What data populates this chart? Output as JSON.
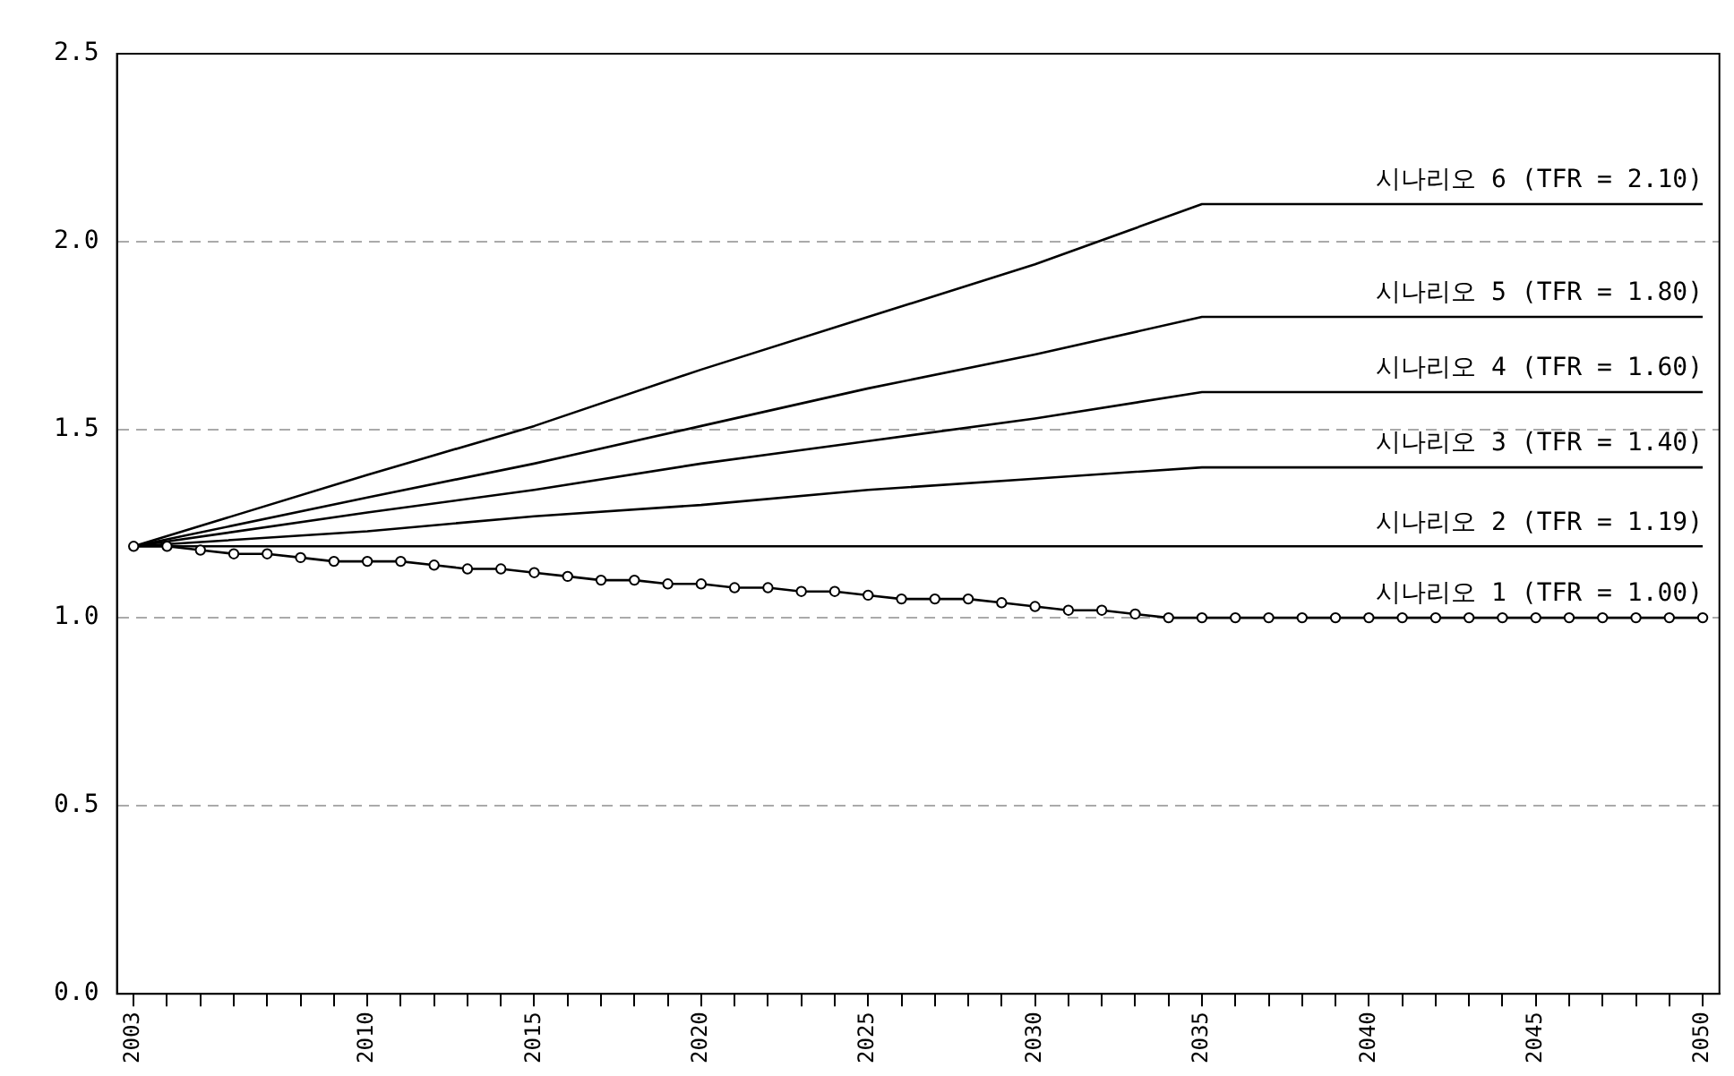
{
  "chart_data": {
    "type": "line",
    "xlim": [
      2002.5,
      2050.5
    ],
    "ylim": [
      0,
      2.5
    ],
    "yticks": [
      {
        "value": 0,
        "label": "0.0"
      },
      {
        "value": 0.5,
        "label": "0.5"
      },
      {
        "value": 1,
        "label": "1.0"
      },
      {
        "value": 1.5,
        "label": "1.5"
      },
      {
        "value": 2,
        "label": "2.0"
      },
      {
        "value": 2.5,
        "label": "2.5"
      }
    ],
    "xticks": [
      2003,
      {
        "value": 2004,
        "label": null
      },
      {
        "value": 2005,
        "label": null
      },
      {
        "value": 2006,
        "label": null
      },
      {
        "value": 2007,
        "label": null
      },
      {
        "value": 2008,
        "label": null
      },
      {
        "value": 2009,
        "label": null
      },
      2010,
      {
        "value": 2011,
        "label": null
      },
      {
        "value": 2012,
        "label": null
      },
      {
        "value": 2013,
        "label": null
      },
      {
        "value": 2014,
        "label": null
      },
      2015,
      {
        "value": 2016,
        "label": null
      },
      {
        "value": 2017,
        "label": null
      },
      {
        "value": 2018,
        "label": null
      },
      {
        "value": 2019,
        "label": null
      },
      2020,
      {
        "value": 2021,
        "label": null
      },
      {
        "value": 2022,
        "label": null
      },
      {
        "value": 2023,
        "label": null
      },
      {
        "value": 2024,
        "label": null
      },
      2025,
      {
        "value": 2026,
        "label": null
      },
      {
        "value": 2027,
        "label": null
      },
      {
        "value": 2028,
        "label": null
      },
      {
        "value": 2029,
        "label": null
      },
      2030,
      {
        "value": 2031,
        "label": null
      },
      {
        "value": 2032,
        "label": null
      },
      {
        "value": 2033,
        "label": null
      },
      {
        "value": 2034,
        "label": null
      },
      2035,
      {
        "value": 2036,
        "label": null
      },
      {
        "value": 2037,
        "label": null
      },
      {
        "value": 2038,
        "label": null
      },
      {
        "value": 2039,
        "label": null
      },
      2040,
      {
        "value": 2041,
        "label": null
      },
      {
        "value": 2042,
        "label": null
      },
      {
        "value": 2043,
        "label": null
      },
      {
        "value": 2044,
        "label": null
      },
      2045,
      {
        "value": 2046,
        "label": null
      },
      {
        "value": 2047,
        "label": null
      },
      {
        "value": 2048,
        "label": null
      },
      {
        "value": 2049,
        "label": null
      },
      2050
    ],
    "grid": "y",
    "line_style": "solid",
    "legend": false,
    "series": [
      {
        "name": "시나리오 6 (TFR = 2.10)",
        "color": "#000000",
        "marker": "none",
        "x": [
          2003,
          2010,
          2015,
          2020,
          2025,
          2030,
          2035,
          2050
        ],
        "values": [
          1.19,
          1.38,
          1.51,
          1.66,
          1.8,
          1.94,
          2.1,
          2.1
        ]
      },
      {
        "name": "시나리오 5 (TFR = 1.80)",
        "color": "#000000",
        "marker": "none",
        "x": [
          2003,
          2010,
          2015,
          2020,
          2025,
          2030,
          2035,
          2050
        ],
        "values": [
          1.19,
          1.32,
          1.41,
          1.51,
          1.61,
          1.7,
          1.8,
          1.8
        ]
      },
      {
        "name": "시나리오 4 (TFR = 1.60)",
        "color": "#000000",
        "marker": "none",
        "x": [
          2003,
          2010,
          2015,
          2020,
          2025,
          2030,
          2035,
          2050
        ],
        "values": [
          1.19,
          1.28,
          1.34,
          1.41,
          1.47,
          1.53,
          1.6,
          1.6
        ]
      },
      {
        "name": "시나리오 3 (TFR = 1.40)",
        "color": "#000000",
        "marker": "none",
        "x": [
          2003,
          2010,
          2015,
          2020,
          2025,
          2030,
          2035,
          2050
        ],
        "values": [
          1.19,
          1.23,
          1.27,
          1.3,
          1.34,
          1.37,
          1.4,
          1.4
        ]
      },
      {
        "name": "시나리오 2 (TFR = 1.19)",
        "color": "#000000",
        "marker": "none",
        "x": [
          2003,
          2050
        ],
        "values": [
          1.19,
          1.19
        ]
      },
      {
        "name": "시나리오 1 (TFR = 1.00)",
        "color": "#000000",
        "marker": "circle",
        "x": [
          2003,
          2004,
          2005,
          2006,
          2007,
          2008,
          2009,
          2010,
          2011,
          2012,
          2013,
          2014,
          2015,
          2016,
          2017,
          2018,
          2019,
          2020,
          2021,
          2022,
          2023,
          2024,
          2025,
          2026,
          2027,
          2028,
          2029,
          2030,
          2031,
          2032,
          2033,
          2034,
          2035,
          2036,
          2037,
          2038,
          2039,
          2040,
          2041,
          2042,
          2043,
          2044,
          2045,
          2046,
          2047,
          2048,
          2049,
          2050
        ],
        "values": [
          1.19,
          1.19,
          1.18,
          1.17,
          1.17,
          1.16,
          1.15,
          1.15,
          1.15,
          1.14,
          1.13,
          1.13,
          1.12,
          1.11,
          1.1,
          1.1,
          1.09,
          1.09,
          1.08,
          1.08,
          1.07,
          1.07,
          1.06,
          1.05,
          1.05,
          1.05,
          1.04,
          1.03,
          1.02,
          1.02,
          1.01,
          1.0,
          1.0,
          1.0,
          1.0,
          1.0,
          1.0,
          1.0,
          1.0,
          1.0,
          1.0,
          1.0,
          1.0,
          1.0,
          1.0,
          1.0,
          1.0,
          1.0
        ]
      }
    ]
  }
}
